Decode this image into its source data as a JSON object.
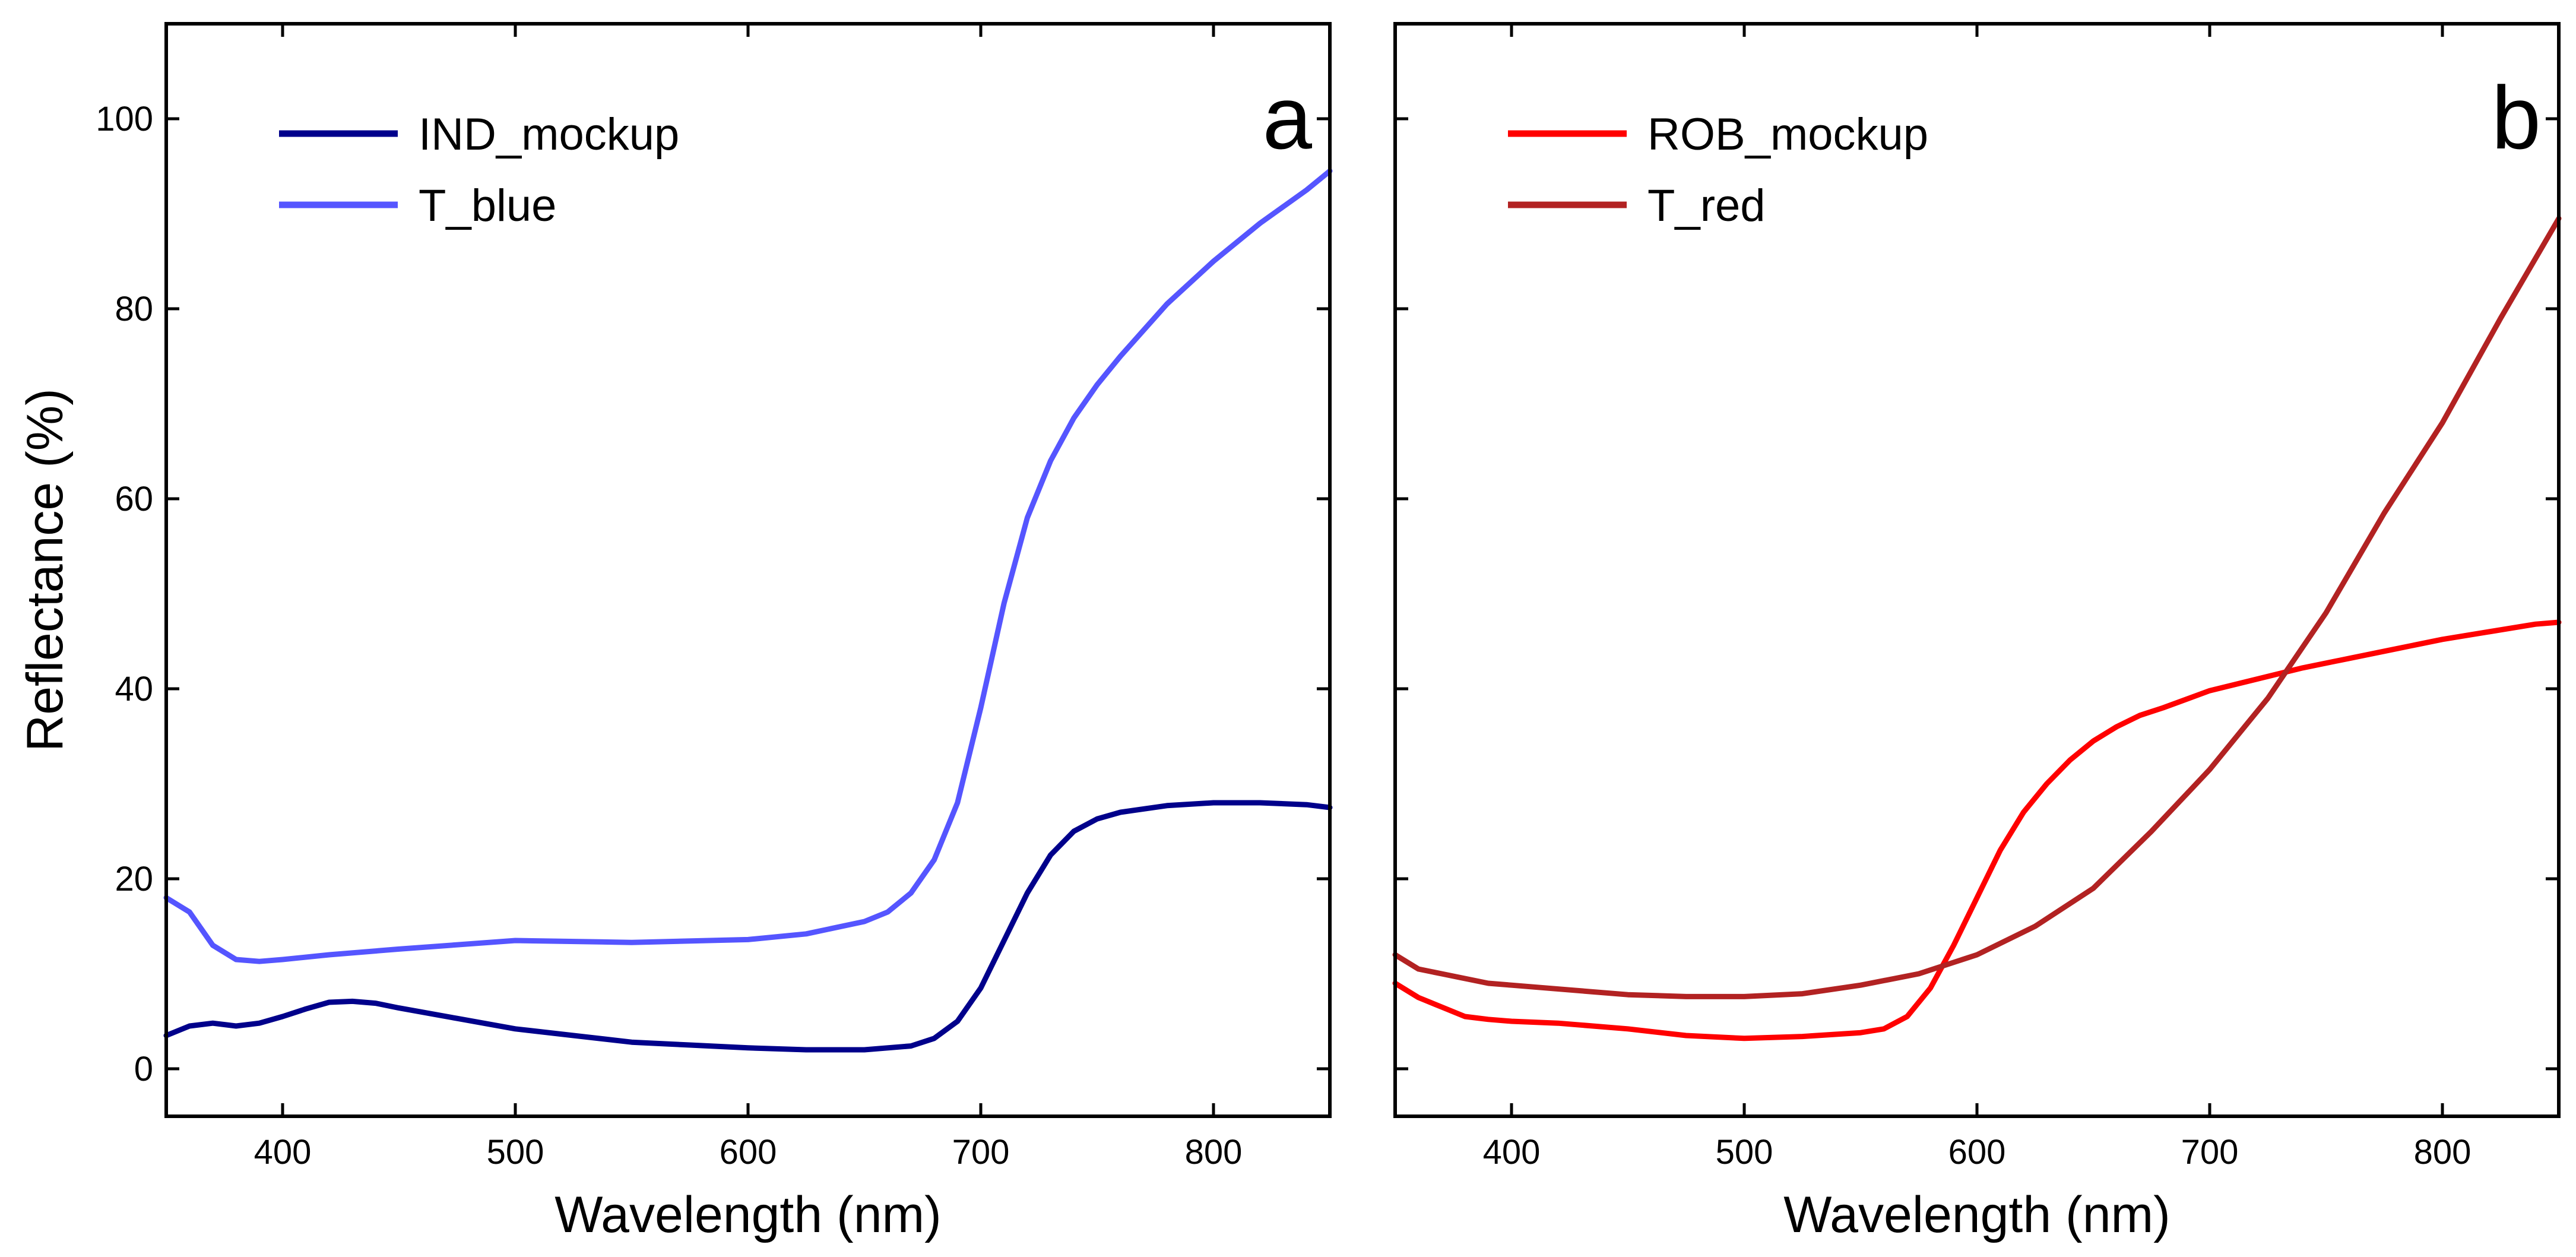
{
  "chart_data": [
    {
      "type": "line",
      "panel_label": "a",
      "xlabel": "Wavelength (nm)",
      "ylabel": "Reflectance (%)",
      "xlim": [
        350,
        850
      ],
      "ylim": [
        -5,
        110
      ],
      "xticks": [
        400,
        500,
        600,
        700,
        800
      ],
      "yticks": [
        0,
        20,
        40,
        60,
        80,
        100
      ],
      "grid": false,
      "legend_position": "top-left",
      "series": [
        {
          "name": "IND_mockup",
          "color": "#00008B",
          "x": [
            350,
            360,
            370,
            380,
            390,
            400,
            410,
            420,
            430,
            440,
            450,
            475,
            500,
            525,
            550,
            575,
            600,
            625,
            650,
            670,
            680,
            690,
            700,
            710,
            720,
            730,
            740,
            750,
            760,
            780,
            800,
            820,
            840,
            850
          ],
          "y": [
            3.5,
            4.5,
            4.8,
            4.5,
            4.8,
            5.5,
            6.3,
            7.0,
            7.1,
            6.9,
            6.4,
            5.3,
            4.2,
            3.5,
            2.8,
            2.5,
            2.2,
            2.0,
            2.0,
            2.4,
            3.2,
            5.0,
            8.5,
            13.5,
            18.5,
            22.5,
            25.0,
            26.3,
            27.0,
            27.7,
            28.0,
            28.0,
            27.8,
            27.5
          ]
        },
        {
          "name": "T_blue",
          "color": "#5555FF",
          "x": [
            350,
            360,
            370,
            380,
            390,
            400,
            420,
            450,
            500,
            550,
            600,
            625,
            650,
            660,
            670,
            680,
            690,
            700,
            710,
            720,
            730,
            740,
            750,
            760,
            780,
            800,
            820,
            840,
            850
          ],
          "y": [
            18.0,
            16.5,
            13.0,
            11.5,
            11.3,
            11.5,
            12.0,
            12.6,
            13.5,
            13.3,
            13.6,
            14.2,
            15.5,
            16.5,
            18.5,
            22.0,
            28.0,
            38.0,
            49.0,
            58.0,
            64.0,
            68.5,
            72.0,
            75.0,
            80.5,
            85.0,
            89.0,
            92.5,
            94.5
          ]
        }
      ]
    },
    {
      "type": "line",
      "panel_label": "b",
      "xlabel": "Wavelength (nm)",
      "ylabel": "",
      "xlim": [
        350,
        850
      ],
      "ylim": [
        -5,
        110
      ],
      "xticks": [
        400,
        500,
        600,
        700,
        800
      ],
      "yticks": [
        0,
        20,
        40,
        60,
        80,
        100
      ],
      "grid": false,
      "legend_position": "top-left",
      "series": [
        {
          "name": "ROB_mockup",
          "color": "#FF0000",
          "x": [
            350,
            360,
            370,
            380,
            390,
            400,
            420,
            450,
            475,
            500,
            525,
            550,
            560,
            570,
            580,
            590,
            600,
            610,
            620,
            630,
            640,
            650,
            660,
            670,
            680,
            700,
            720,
            740,
            760,
            780,
            800,
            820,
            840,
            850
          ],
          "y": [
            9.0,
            7.5,
            6.5,
            5.5,
            5.2,
            5.0,
            4.8,
            4.2,
            3.5,
            3.2,
            3.4,
            3.8,
            4.2,
            5.5,
            8.5,
            13.0,
            18.0,
            23.0,
            27.0,
            30.0,
            32.5,
            34.5,
            36.0,
            37.2,
            38.0,
            39.8,
            41.0,
            42.2,
            43.2,
            44.2,
            45.2,
            46.0,
            46.8,
            47.0
          ]
        },
        {
          "name": "T_red",
          "color": "#B22222",
          "x": [
            350,
            360,
            370,
            380,
            390,
            400,
            425,
            450,
            475,
            500,
            525,
            550,
            575,
            600,
            625,
            650,
            675,
            700,
            725,
            750,
            775,
            800,
            825,
            850
          ],
          "y": [
            12.0,
            10.5,
            10.0,
            9.5,
            9.0,
            8.8,
            8.3,
            7.8,
            7.6,
            7.6,
            7.9,
            8.8,
            10.0,
            12.0,
            15.0,
            19.0,
            25.0,
            31.5,
            39.0,
            48.0,
            58.5,
            68.0,
            79.0,
            89.5
          ]
        }
      ]
    }
  ]
}
